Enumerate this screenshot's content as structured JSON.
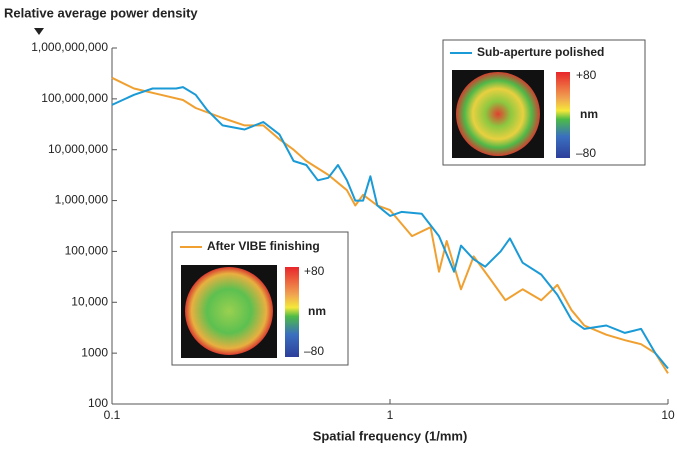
{
  "chart_data": {
    "type": "line",
    "y_label": "Relative average power density",
    "x_label": "Spatial frequency (1/mm)",
    "log_x": true,
    "log_y": true,
    "xlim": [
      0.1,
      10
    ],
    "ylim": [
      100,
      1000000000
    ],
    "xticks": [
      0.1,
      1,
      10
    ],
    "yticks": [
      100,
      1000,
      {
        "value": 10000,
        "label": "10,000"
      },
      {
        "value": 100000,
        "label": "100,000"
      },
      {
        "value": 1000000,
        "label": "1,000,000"
      },
      {
        "value": 10000000,
        "label": "10,000,000"
      },
      {
        "value": 100000000,
        "label": "100,000,000"
      },
      {
        "value": 1000000000,
        "label": "1,000,000,000"
      }
    ],
    "series": [
      {
        "name": "Sub-aperture polished",
        "color": "#1a9ad6",
        "x": [
          0.1,
          0.12,
          0.14,
          0.17,
          0.18,
          0.2,
          0.22,
          0.25,
          0.3,
          0.35,
          0.4,
          0.45,
          0.5,
          0.55,
          0.6,
          0.65,
          0.7,
          0.75,
          0.8,
          0.85,
          0.9,
          1.0,
          1.1,
          1.3,
          1.5,
          1.7,
          1.8,
          2.0,
          2.2,
          2.5,
          2.7,
          3.0,
          3.5,
          4,
          4.5,
          5,
          6,
          7,
          8,
          9,
          10
        ],
        "values": [
          76000000,
          120000000,
          160000000,
          160000000,
          170000000,
          120000000,
          60000000,
          30000000,
          25000000,
          35000000,
          20000000,
          6000000,
          5000000,
          2500000,
          2800000,
          5000000,
          2500000,
          1000000,
          1000000,
          3000000,
          800000,
          500000,
          600000,
          550000,
          200000,
          40000,
          130000,
          70000,
          50000,
          100000,
          180000,
          60000,
          35000,
          14000,
          4500,
          3000,
          3500,
          2500,
          3000,
          1000,
          500
        ]
      },
      {
        "name": "After VIBE finishing",
        "color": "#f0a030",
        "x": [
          0.1,
          0.12,
          0.15,
          0.18,
          0.2,
          0.25,
          0.3,
          0.35,
          0.4,
          0.45,
          0.5,
          0.6,
          0.7,
          0.75,
          0.8,
          0.9,
          1.0,
          1.2,
          1.4,
          1.5,
          1.6,
          1.8,
          2.0,
          2.3,
          2.6,
          3.0,
          3.5,
          4,
          4.5,
          5,
          6,
          7,
          8,
          9,
          10
        ],
        "values": [
          260000000,
          160000000,
          120000000,
          95000000,
          66000000,
          42000000,
          30000000,
          30000000,
          16000000,
          10000000,
          6000000,
          3200000,
          1600000,
          800000,
          1300000,
          800000,
          650000,
          200000,
          300000,
          40000,
          160000,
          18000,
          80000,
          28000,
          11000,
          18000,
          11000,
          22000,
          7000,
          3500,
          2300,
          1800,
          1500,
          1000,
          400
        ]
      }
    ],
    "insets": [
      {
        "scale_labels": [
          "+80",
          "nm",
          "–80"
        ]
      },
      {
        "scale_labels": [
          "+80",
          "nm",
          "–80"
        ]
      }
    ]
  }
}
